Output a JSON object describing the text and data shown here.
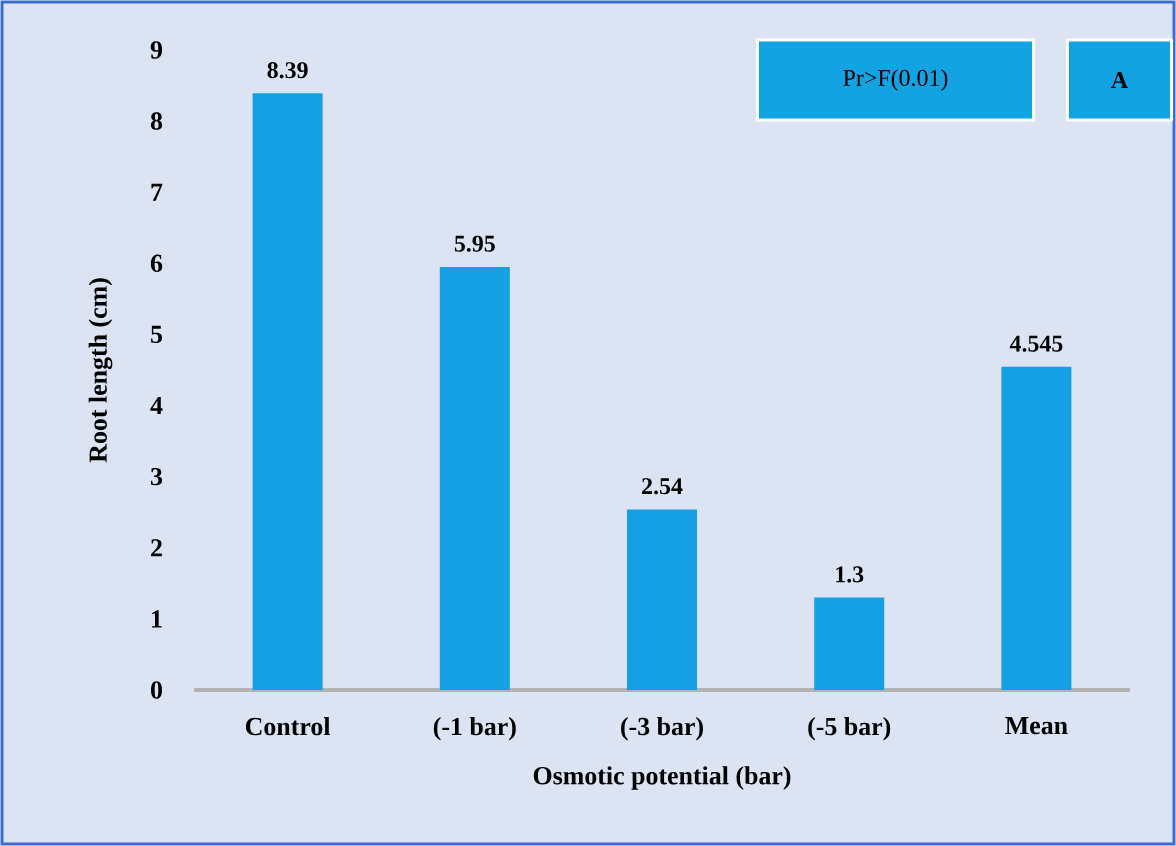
{
  "chart_data": {
    "type": "bar",
    "xlabel": "Osmotic potential (bar)",
    "ylabel": "Root length (cm)",
    "categories": [
      "Control",
      "(-1 bar)",
      "(-3 bar)",
      "(-5 bar)",
      "Mean"
    ],
    "values": [
      8.39,
      5.95,
      2.54,
      1.3,
      4.545
    ],
    "color": "#14a0e2",
    "ylim": [
      0,
      9
    ],
    "yticks": [
      0,
      1,
      2,
      3,
      4,
      5,
      6,
      7,
      8,
      9
    ],
    "data_labels": true,
    "annotations": [
      "Pr>F(0.01)",
      "A"
    ]
  }
}
